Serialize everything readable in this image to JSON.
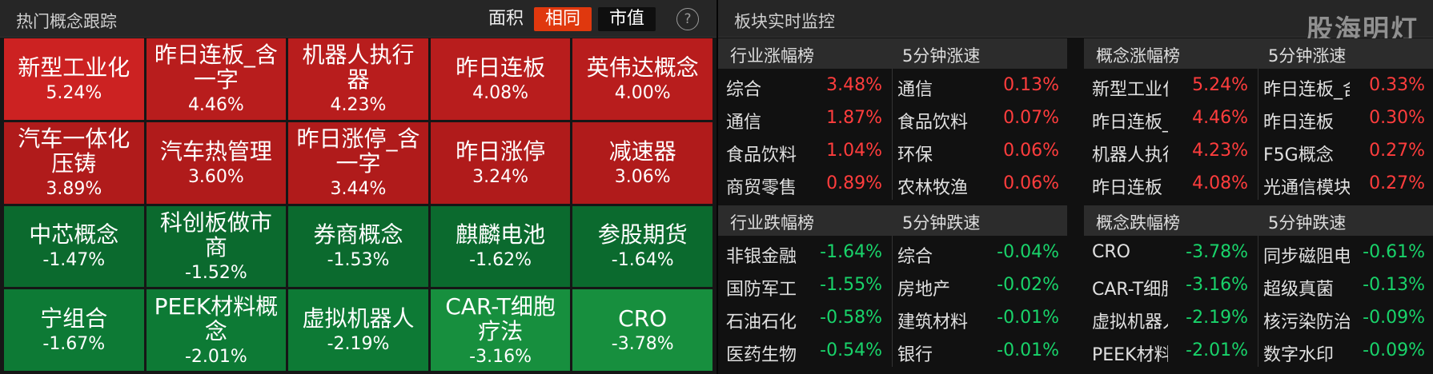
{
  "left_panel": {
    "title": "热门概念跟踪",
    "seg_label": "面积",
    "seg_options": [
      "相同",
      "市值"
    ],
    "help_icon": "question-circle-icon",
    "tiles": [
      {
        "name": "新型工业化",
        "pct": "5.24%",
        "cls": "r1"
      },
      {
        "name": "昨日连板_含一字",
        "pct": "4.46%",
        "cls": "r2"
      },
      {
        "name": "机器人执行器",
        "pct": "4.23%",
        "cls": "r2"
      },
      {
        "name": "昨日连板",
        "pct": "4.08%",
        "cls": "r2"
      },
      {
        "name": "英伟达概念",
        "pct": "4.00%",
        "cls": "r2"
      },
      {
        "name": "汽车一体化压铸",
        "pct": "3.89%",
        "cls": "r3"
      },
      {
        "name": "汽车热管理",
        "pct": "3.60%",
        "cls": "r3"
      },
      {
        "name": "昨日涨停_含一字",
        "pct": "3.44%",
        "cls": "r3"
      },
      {
        "name": "昨日涨停",
        "pct": "3.24%",
        "cls": "r3"
      },
      {
        "name": "减速器",
        "pct": "3.06%",
        "cls": "r3"
      },
      {
        "name": "中芯概念",
        "pct": "-1.47%",
        "cls": "g1"
      },
      {
        "name": "科创板做市商",
        "pct": "-1.52%",
        "cls": "g1"
      },
      {
        "name": "券商概念",
        "pct": "-1.53%",
        "cls": "g1"
      },
      {
        "name": "麒麟电池",
        "pct": "-1.62%",
        "cls": "g1"
      },
      {
        "name": "参股期货",
        "pct": "-1.64%",
        "cls": "g1"
      },
      {
        "name": "宁组合",
        "pct": "-1.67%",
        "cls": "g2"
      },
      {
        "name": "PEEK材料概念",
        "pct": "-2.01%",
        "cls": "g2"
      },
      {
        "name": "虚拟机器人",
        "pct": "-2.19%",
        "cls": "g2"
      },
      {
        "name": "CAR-T细胞疗法",
        "pct": "-3.16%",
        "cls": "g3"
      },
      {
        "name": "CRO",
        "pct": "-3.78%",
        "cls": "g3"
      }
    ]
  },
  "right_panel": {
    "title": "板块实时监控",
    "watermark": "股海明灯",
    "lists": [
      {
        "h1": "行业涨幅榜",
        "h2": "5分钟涨速",
        "dir": "up",
        "rows": [
          [
            "综合",
            "3.48%",
            "通信",
            "0.13%"
          ],
          [
            "通信",
            "1.87%",
            "食品饮料",
            "0.07%"
          ],
          [
            "食品饮料",
            "1.04%",
            "环保",
            "0.06%"
          ],
          [
            "商贸零售",
            "0.89%",
            "农林牧渔",
            "0.06%"
          ]
        ]
      },
      {
        "h1": "概念涨幅榜",
        "h2": "5分钟涨速",
        "dir": "up",
        "rows": [
          [
            "新型工业化",
            "5.24%",
            "昨日连板_含",
            "0.33%"
          ],
          [
            "昨日连板_含",
            "4.46%",
            "昨日连板",
            "0.30%"
          ],
          [
            "机器人执行器",
            "4.23%",
            "F5G概念",
            "0.27%"
          ],
          [
            "昨日连板",
            "4.08%",
            "光通信模块",
            "0.27%"
          ]
        ]
      },
      {
        "h1": "行业跌幅榜",
        "h2": "5分钟跌速",
        "dir": "dn",
        "rows": [
          [
            "非银金融",
            "-1.64%",
            "综合",
            "-0.04%"
          ],
          [
            "国防军工",
            "-1.55%",
            "房地产",
            "-0.02%"
          ],
          [
            "石油石化",
            "-0.58%",
            "建筑材料",
            "-0.01%"
          ],
          [
            "医药生物",
            "-0.54%",
            "银行",
            "-0.01%"
          ]
        ]
      },
      {
        "h1": "概念跌幅榜",
        "h2": "5分钟跌速",
        "dir": "dn",
        "rows": [
          [
            "CRO",
            "-3.78%",
            "同步磁阻电",
            "-0.61%"
          ],
          [
            "CAR-T细胞",
            "-3.16%",
            "超级真菌",
            "-0.13%"
          ],
          [
            "虚拟机器人",
            "-2.19%",
            "核污染防治",
            "-0.09%"
          ],
          [
            "PEEK材料概",
            "-2.01%",
            "数字水印",
            "-0.09%"
          ]
        ]
      }
    ]
  }
}
